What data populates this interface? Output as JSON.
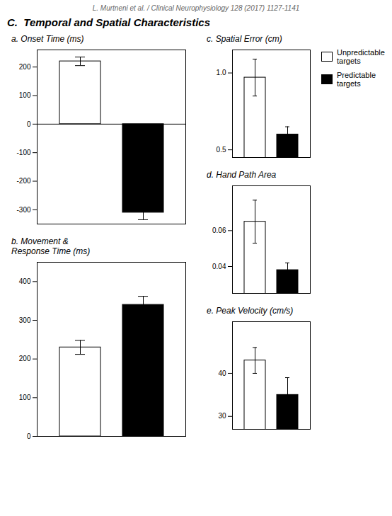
{
  "title": "C.  Temporal and Spatial Characteristics",
  "subtitle": "L. Murtneni et al. / Clinical Neurophysiology 128 (2017) 1127-1141",
  "chart_data": [
    {
      "type": "bar",
      "title": "a. Onset Time (ms)",
      "categories": [
        "Unpredictable\ntargets",
        "Predictable\ntargets"
      ],
      "values": [
        220,
        -310
      ],
      "errors": [
        15,
        25
      ],
      "colors": [
        "white",
        "black"
      ],
      "ylim": [
        -350,
        260
      ],
      "yticks": [
        -300,
        -200,
        -100,
        0,
        100,
        200
      ],
      "grid": false,
      "tick_labels": "y"
    },
    {
      "type": "bar",
      "title": "b. Movement &\n    Response Time (ms)",
      "categories": [
        "Unpredictable\ntargets",
        "Predictable\ntargets"
      ],
      "values": [
        230,
        340
      ],
      "errors": [
        18,
        22
      ],
      "colors": [
        "white",
        "black"
      ],
      "ylim": [
        0,
        450
      ],
      "yticks": [
        0,
        100,
        200,
        300,
        400
      ],
      "grid": false,
      "tick_labels": "y"
    },
    {
      "type": "bar",
      "title": "c. Spatial Error (cm)",
      "categories": [
        "Unpredictable\ntargets",
        "Predictable\ntargets"
      ],
      "values": [
        0.97,
        0.6
      ],
      "errors": [
        0.12,
        0.05
      ],
      "colors": [
        "white",
        "black"
      ],
      "ylim": [
        0.45,
        1.15
      ],
      "yticks": [
        0.5,
        {
          "value": 1.0,
          "label": "1.0"
        }
      ],
      "grid": false,
      "tick_labels": "y",
      "legend": "right"
    },
    {
      "type": "bar",
      "title": "d. Hand Path Area",
      "categories": [
        "Unpredictable\ntargets",
        "Predictable\ntargets"
      ],
      "values": [
        0.065,
        0.038
      ],
      "errors": [
        0.012,
        0.004
      ],
      "colors": [
        "white",
        "black"
      ],
      "ylim": [
        0.025,
        0.085
      ],
      "yticks": [
        0.04,
        0.06
      ],
      "grid": false,
      "tick_labels": "y"
    },
    {
      "type": "bar",
      "title": "e. Peak Velocity (cm/s)",
      "categories": [
        "Unpredictable\ntargets",
        "Predictable\ntargets"
      ],
      "values": [
        43,
        35
      ],
      "errors": [
        3,
        4
      ],
      "colors": [
        "white",
        "black"
      ],
      "ylim": [
        27,
        52
      ],
      "yticks": [
        30,
        40
      ],
      "grid": false,
      "tick_labels": "y"
    }
  ]
}
